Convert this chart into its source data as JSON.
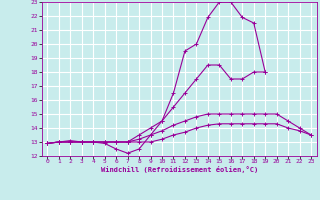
{
  "bg_color": "#c8ecec",
  "grid_color": "#ffffff",
  "line_color": "#990099",
  "xlabel": "Windchill (Refroidissement éolien,°C)",
  "xlim": [
    -0.5,
    23.5
  ],
  "ylim": [
    12,
    23
  ],
  "xticks": [
    0,
    1,
    2,
    3,
    4,
    5,
    6,
    7,
    8,
    9,
    10,
    11,
    12,
    13,
    14,
    15,
    16,
    17,
    18,
    19,
    20,
    21,
    22,
    23
  ],
  "yticks": [
    12,
    13,
    14,
    15,
    16,
    17,
    18,
    19,
    20,
    21,
    22,
    23
  ],
  "lines": [
    {
      "x": [
        0,
        1,
        2,
        3,
        4,
        5,
        6,
        7,
        8,
        9,
        10,
        11,
        12,
        13,
        14,
        15,
        16,
        17,
        18,
        19
      ],
      "y": [
        12.9,
        13.0,
        13.1,
        13.0,
        13.0,
        12.9,
        12.5,
        12.2,
        12.5,
        13.5,
        14.5,
        16.5,
        19.5,
        20.0,
        21.9,
        23.0,
        23.0,
        21.9,
        21.5,
        18.0
      ]
    },
    {
      "x": [
        0,
        1,
        2,
        3,
        4,
        5,
        6,
        7,
        8,
        9,
        10,
        11,
        12,
        13,
        14,
        15,
        16,
        17,
        18,
        19,
        20,
        21,
        22,
        23
      ],
      "y": [
        12.9,
        13.0,
        13.0,
        13.0,
        13.0,
        13.0,
        13.0,
        13.0,
        13.5,
        14.0,
        14.5,
        15.5,
        16.5,
        17.5,
        18.5,
        18.5,
        17.5,
        17.5,
        18.0,
        18.0,
        null,
        null,
        null,
        null
      ]
    },
    {
      "x": [
        0,
        1,
        2,
        3,
        4,
        5,
        6,
        7,
        8,
        9,
        10,
        11,
        12,
        13,
        14,
        15,
        16,
        17,
        18,
        19,
        20,
        21,
        22,
        23
      ],
      "y": [
        12.9,
        13.0,
        13.0,
        13.0,
        13.0,
        13.0,
        13.0,
        13.0,
        13.2,
        13.5,
        13.8,
        14.2,
        14.5,
        14.8,
        15.0,
        15.0,
        15.0,
        15.0,
        15.0,
        15.0,
        15.0,
        14.5,
        14.0,
        13.5
      ]
    },
    {
      "x": [
        0,
        1,
        2,
        3,
        4,
        5,
        6,
        7,
        8,
        9,
        10,
        11,
        12,
        13,
        14,
        15,
        16,
        17,
        18,
        19,
        20,
        21,
        22,
        23
      ],
      "y": [
        12.9,
        13.0,
        13.0,
        13.0,
        13.0,
        13.0,
        13.0,
        13.0,
        13.0,
        13.0,
        13.2,
        13.5,
        13.7,
        14.0,
        14.2,
        14.3,
        14.3,
        14.3,
        14.3,
        14.3,
        14.3,
        14.0,
        13.8,
        13.5
      ]
    }
  ]
}
